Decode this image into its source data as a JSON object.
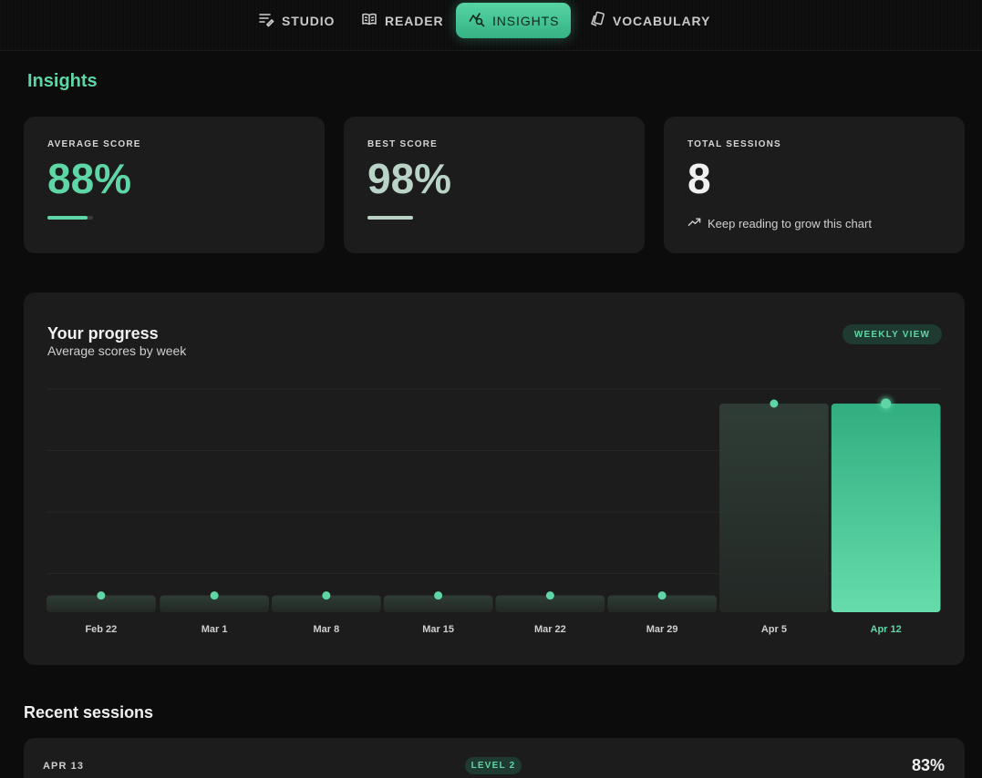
{
  "nav": {
    "items": [
      {
        "label": "STUDIO",
        "icon": "edit-lines-icon",
        "active": false
      },
      {
        "label": "READER",
        "icon": "open-book-icon",
        "active": false
      },
      {
        "label": "INSIGHTS",
        "icon": "chart-search-icon",
        "active": true
      },
      {
        "label": "VOCABULARY",
        "icon": "cards-icon",
        "active": false
      }
    ]
  },
  "page": {
    "title": "Insights"
  },
  "stats": {
    "average": {
      "label": "AVERAGE SCORE",
      "value": "88%",
      "progress": 0.88,
      "color": "#5fd6a6"
    },
    "best": {
      "label": "BEST SCORE",
      "value": "98%",
      "progress": 1.0,
      "color": "#b9d4c6"
    },
    "sessions": {
      "label": "TOTAL SESSIONS",
      "value": "8",
      "note": "Keep reading to grow this chart",
      "note_icon": "trending-up-icon"
    }
  },
  "progress": {
    "title": "Your progress",
    "subtitle": "Average scores by week",
    "view_label": "WEEKLY VIEW"
  },
  "chart_data": {
    "type": "bar",
    "categories": [
      "Feb 22",
      "Mar 1",
      "Mar 8",
      "Mar 15",
      "Mar 22",
      "Mar 29",
      "Apr 5",
      "Apr 12"
    ],
    "values": [
      8,
      8,
      8,
      8,
      8,
      8,
      100,
      100
    ],
    "highlight_index": 7,
    "ylim": [
      0,
      100
    ],
    "grid": true,
    "colors": {
      "bar": "#2b3631",
      "highlight_top": "#30ae80",
      "highlight_bottom": "#66dcab",
      "point": "#5fd6a6"
    }
  },
  "recent": {
    "title": "Recent sessions",
    "sessions": [
      {
        "date": "APR 13",
        "level": "LEVEL 2",
        "score": "83%"
      }
    ]
  }
}
